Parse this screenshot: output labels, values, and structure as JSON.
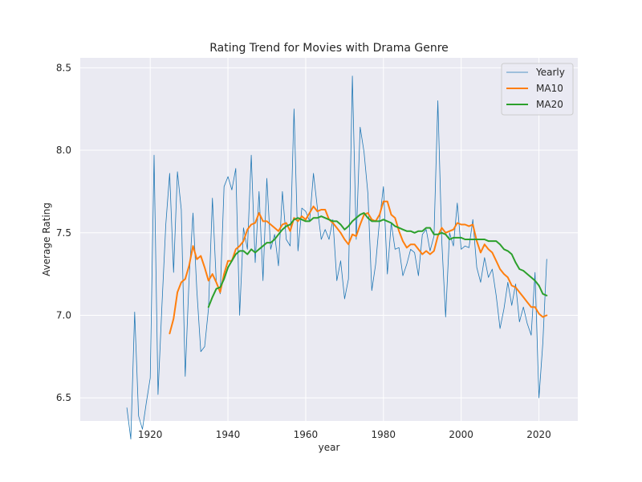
{
  "chart_data": {
    "type": "line",
    "title": "Rating Trend for Movies with Drama Genre",
    "xlabel": "year",
    "ylabel": "Average Rating",
    "xlim": [
      1902,
      2030
    ],
    "ylim": [
      6.36,
      8.56
    ],
    "xticks": [
      1920,
      1940,
      1960,
      1980,
      2000,
      2020
    ],
    "yticks": [
      6.5,
      7.0,
      7.5,
      8.0,
      8.5
    ],
    "ytick_labels": [
      "6.5",
      "7.0",
      "7.5",
      "8.0",
      "8.5"
    ],
    "grid": true,
    "legend_position": "top-right",
    "style": {
      "background": "#eaeaf2",
      "grid_color": "#ffffff"
    },
    "series": [
      {
        "name": "Yearly",
        "color": "#1f77b4",
        "stroke_width": 0.8,
        "x": [
          1914,
          1915,
          1916,
          1917,
          1918,
          1919,
          1920,
          1921,
          1922,
          1923,
          1924,
          1925,
          1926,
          1927,
          1928,
          1929,
          1930,
          1931,
          1932,
          1933,
          1934,
          1935,
          1936,
          1937,
          1938,
          1939,
          1940,
          1941,
          1942,
          1943,
          1944,
          1945,
          1946,
          1947,
          1948,
          1949,
          1950,
          1951,
          1952,
          1953,
          1954,
          1955,
          1956,
          1957,
          1958,
          1959,
          1960,
          1961,
          1962,
          1963,
          1964,
          1965,
          1966,
          1967,
          1968,
          1969,
          1970,
          1971,
          1972,
          1973,
          1974,
          1975,
          1976,
          1977,
          1978,
          1979,
          1980,
          1981,
          1982,
          1983,
          1984,
          1985,
          1986,
          1987,
          1988,
          1989,
          1990,
          1991,
          1992,
          1993,
          1994,
          1995,
          1996,
          1997,
          1998,
          1999,
          2000,
          2001,
          2002,
          2003,
          2004,
          2005,
          2006,
          2007,
          2008,
          2009,
          2010,
          2011,
          2012,
          2013,
          2014,
          2015,
          2016,
          2017,
          2018,
          2019,
          2020,
          2021,
          2022
        ],
        "values": [
          6.44,
          6.25,
          7.02,
          6.39,
          6.31,
          6.47,
          6.62,
          7.97,
          6.52,
          7.05,
          7.55,
          7.86,
          7.26,
          7.87,
          7.64,
          6.63,
          7.22,
          7.62,
          7.15,
          6.78,
          6.81,
          7.04,
          7.71,
          7.2,
          7.13,
          7.78,
          7.84,
          7.76,
          7.89,
          7.0,
          7.53,
          7.4,
          7.97,
          7.32,
          7.75,
          7.21,
          7.83,
          7.4,
          7.49,
          7.3,
          7.75,
          7.46,
          7.42,
          8.25,
          7.39,
          7.65,
          7.63,
          7.57,
          7.86,
          7.65,
          7.46,
          7.52,
          7.46,
          7.58,
          7.21,
          7.33,
          7.1,
          7.22,
          8.45,
          7.46,
          8.14,
          7.99,
          7.74,
          7.15,
          7.31,
          7.58,
          7.78,
          7.25,
          7.56,
          7.4,
          7.41,
          7.24,
          7.31,
          7.4,
          7.38,
          7.24,
          7.49,
          7.52,
          7.39,
          7.48,
          8.3,
          7.45,
          6.99,
          7.5,
          7.42,
          7.68,
          7.4,
          7.42,
          7.41,
          7.58,
          7.29,
          7.2,
          7.35,
          7.23,
          7.28,
          7.12,
          6.92,
          7.04,
          7.2,
          7.06,
          7.19,
          6.96,
          7.05,
          6.95,
          6.88,
          7.26,
          6.5,
          6.83,
          7.34
        ]
      },
      {
        "name": "MA10",
        "color": "#ff7f0e",
        "stroke_width": 2,
        "x": [
          1925,
          1926,
          1927,
          1928,
          1929,
          1930,
          1931,
          1932,
          1933,
          1934,
          1935,
          1936,
          1937,
          1938,
          1939,
          1940,
          1941,
          1942,
          1943,
          1944,
          1945,
          1946,
          1947,
          1948,
          1949,
          1950,
          1951,
          1952,
          1953,
          1954,
          1955,
          1956,
          1957,
          1958,
          1959,
          1960,
          1961,
          1962,
          1963,
          1964,
          1965,
          1966,
          1967,
          1968,
          1969,
          1970,
          1971,
          1972,
          1973,
          1974,
          1975,
          1976,
          1977,
          1978,
          1979,
          1980,
          1981,
          1982,
          1983,
          1984,
          1985,
          1986,
          1987,
          1988,
          1989,
          1990,
          1991,
          1992,
          1993,
          1994,
          1995,
          1996,
          1997,
          1998,
          1999,
          2000,
          2001,
          2002,
          2003,
          2004,
          2005,
          2006,
          2007,
          2008,
          2009,
          2010,
          2011,
          2012,
          2013,
          2014,
          2015,
          2016,
          2017,
          2018,
          2019,
          2020,
          2021,
          2022
        ],
        "values": [
          6.89,
          6.98,
          7.14,
          7.2,
          7.22,
          7.3,
          7.42,
          7.34,
          7.36,
          7.29,
          7.21,
          7.25,
          7.2,
          7.14,
          7.25,
          7.33,
          7.33,
          7.4,
          7.42,
          7.45,
          7.52,
          7.55,
          7.56,
          7.62,
          7.57,
          7.57,
          7.55,
          7.53,
          7.51,
          7.55,
          7.56,
          7.51,
          7.59,
          7.57,
          7.6,
          7.58,
          7.62,
          7.66,
          7.63,
          7.64,
          7.64,
          7.58,
          7.56,
          7.53,
          7.5,
          7.46,
          7.43,
          7.49,
          7.48,
          7.55,
          7.61,
          7.62,
          7.58,
          7.57,
          7.61,
          7.69,
          7.69,
          7.61,
          7.59,
          7.51,
          7.45,
          7.41,
          7.43,
          7.43,
          7.4,
          7.37,
          7.39,
          7.37,
          7.39,
          7.48,
          7.53,
          7.5,
          7.51,
          7.52,
          7.56,
          7.55,
          7.55,
          7.54,
          7.55,
          7.45,
          7.38,
          7.43,
          7.4,
          7.38,
          7.33,
          7.28,
          7.25,
          7.23,
          7.18,
          7.17,
          7.14,
          7.11,
          7.08,
          7.05,
          7.05,
          7.01,
          6.99,
          7.0
        ]
      },
      {
        "name": "MA20",
        "color": "#2ca02c",
        "stroke_width": 2,
        "x": [
          1935,
          1936,
          1937,
          1938,
          1939,
          1940,
          1941,
          1942,
          1943,
          1944,
          1945,
          1946,
          1947,
          1948,
          1949,
          1950,
          1951,
          1952,
          1953,
          1954,
          1955,
          1956,
          1957,
          1958,
          1959,
          1960,
          1961,
          1962,
          1963,
          1964,
          1965,
          1966,
          1967,
          1968,
          1969,
          1970,
          1971,
          1972,
          1973,
          1974,
          1975,
          1976,
          1977,
          1978,
          1979,
          1980,
          1981,
          1982,
          1983,
          1984,
          1985,
          1986,
          1987,
          1988,
          1989,
          1990,
          1991,
          1992,
          1993,
          1994,
          1995,
          1996,
          1997,
          1998,
          1999,
          2000,
          2001,
          2002,
          2003,
          2004,
          2005,
          2006,
          2007,
          2008,
          2009,
          2010,
          2011,
          2012,
          2013,
          2014,
          2015,
          2016,
          2017,
          2018,
          2019,
          2020,
          2021,
          2022
        ],
        "values": [
          7.05,
          7.11,
          7.16,
          7.17,
          7.22,
          7.29,
          7.33,
          7.37,
          7.39,
          7.39,
          7.37,
          7.4,
          7.38,
          7.4,
          7.42,
          7.44,
          7.44,
          7.46,
          7.49,
          7.52,
          7.54,
          7.55,
          7.58,
          7.59,
          7.58,
          7.57,
          7.57,
          7.59,
          7.59,
          7.6,
          7.59,
          7.58,
          7.57,
          7.57,
          7.55,
          7.52,
          7.54,
          7.57,
          7.59,
          7.61,
          7.62,
          7.59,
          7.57,
          7.57,
          7.57,
          7.58,
          7.57,
          7.56,
          7.54,
          7.53,
          7.52,
          7.51,
          7.51,
          7.5,
          7.51,
          7.51,
          7.53,
          7.53,
          7.49,
          7.49,
          7.5,
          7.49,
          7.46,
          7.47,
          7.47,
          7.47,
          7.46,
          7.46,
          7.46,
          7.46,
          7.46,
          7.46,
          7.45,
          7.45,
          7.45,
          7.43,
          7.4,
          7.39,
          7.37,
          7.32,
          7.28,
          7.27,
          7.25,
          7.23,
          7.21,
          7.18,
          7.13,
          7.12
        ]
      }
    ]
  }
}
